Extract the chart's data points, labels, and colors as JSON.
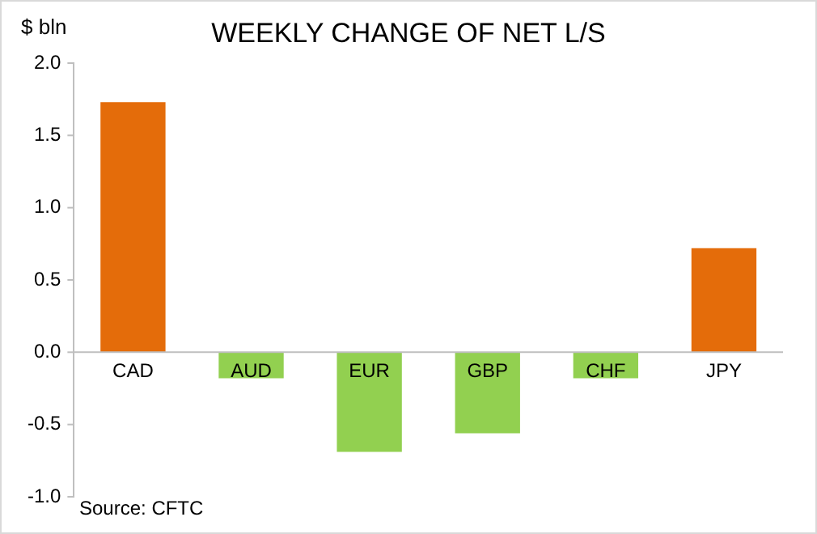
{
  "chart_data": {
    "type": "bar",
    "title": "WEEKLY CHANGE OF NET L/S",
    "ylabel": "$ bln",
    "categories": [
      "CAD",
      "AUD",
      "EUR",
      "GBP",
      "CHF",
      "JPY"
    ],
    "values": [
      1.73,
      -0.18,
      -0.69,
      -0.56,
      -0.18,
      0.72
    ],
    "colors": [
      "#e46c0a",
      "#92d050",
      "#92d050",
      "#92d050",
      "#92d050",
      "#e46c0a"
    ],
    "ylim": [
      -1,
      2
    ],
    "yticks": [
      {
        "value": -1,
        "label": "-1.0"
      },
      {
        "value": -0.5,
        "label": "-0.5"
      },
      {
        "value": 0,
        "label": "0.0"
      },
      {
        "value": 0.5,
        "label": "0.5"
      },
      {
        "value": 1,
        "label": "1.0"
      },
      {
        "value": 1.5,
        "label": "1.5"
      },
      {
        "value": 2,
        "label": "2.0"
      }
    ],
    "grid": false,
    "legend": false,
    "annotations": [
      "Source: CFTC"
    ]
  }
}
